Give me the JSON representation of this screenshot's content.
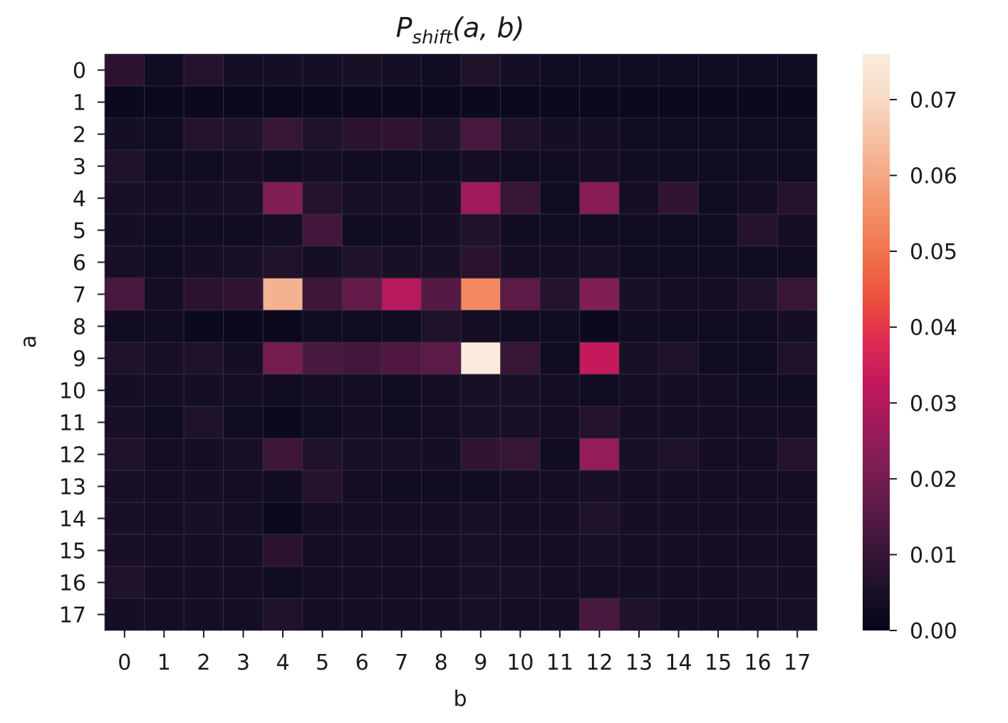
{
  "chart_data": {
    "type": "heatmap",
    "title": "P",
    "title_subscript": "shift",
    "title_args": "(a, b)",
    "xlabel": "b",
    "ylabel": "a",
    "x_categories": [
      "0",
      "1",
      "2",
      "3",
      "4",
      "5",
      "6",
      "7",
      "8",
      "9",
      "10",
      "11",
      "12",
      "13",
      "14",
      "15",
      "16",
      "17"
    ],
    "y_categories": [
      "0",
      "1",
      "2",
      "3",
      "4",
      "5",
      "6",
      "7",
      "8",
      "9",
      "10",
      "11",
      "12",
      "13",
      "14",
      "15",
      "16",
      "17"
    ],
    "values": [
      [
        0.008,
        0.003,
        0.007,
        0.004,
        0.004,
        0.004,
        0.005,
        0.004,
        0.003,
        0.006,
        0.004,
        0.003,
        0.003,
        0.003,
        0.003,
        0.003,
        0.003,
        0.003
      ],
      [
        0.002,
        0.002,
        0.002,
        0.002,
        0.002,
        0.002,
        0.002,
        0.002,
        0.002,
        0.002,
        0.002,
        0.002,
        0.002,
        0.002,
        0.002,
        0.002,
        0.002,
        0.002
      ],
      [
        0.004,
        0.003,
        0.007,
        0.006,
        0.01,
        0.006,
        0.008,
        0.009,
        0.006,
        0.013,
        0.006,
        0.004,
        0.004,
        0.003,
        0.003,
        0.003,
        0.003,
        0.003
      ],
      [
        0.006,
        0.003,
        0.003,
        0.004,
        0.003,
        0.004,
        0.003,
        0.003,
        0.003,
        0.004,
        0.003,
        0.003,
        0.004,
        0.003,
        0.003,
        0.003,
        0.003,
        0.003
      ],
      [
        0.005,
        0.004,
        0.004,
        0.005,
        0.022,
        0.007,
        0.005,
        0.005,
        0.004,
        0.027,
        0.01,
        0.003,
        0.023,
        0.004,
        0.009,
        0.003,
        0.004,
        0.007
      ],
      [
        0.004,
        0.003,
        0.003,
        0.003,
        0.004,
        0.012,
        0.003,
        0.003,
        0.004,
        0.006,
        0.003,
        0.003,
        0.003,
        0.003,
        0.003,
        0.003,
        0.007,
        0.004
      ],
      [
        0.005,
        0.003,
        0.004,
        0.005,
        0.006,
        0.004,
        0.006,
        0.005,
        0.005,
        0.008,
        0.004,
        0.004,
        0.005,
        0.003,
        0.003,
        0.003,
        0.003,
        0.003
      ],
      [
        0.013,
        0.004,
        0.008,
        0.009,
        0.062,
        0.011,
        0.017,
        0.031,
        0.015,
        0.054,
        0.016,
        0.007,
        0.022,
        0.005,
        0.004,
        0.004,
        0.006,
        0.01
      ],
      [
        0.003,
        0.003,
        0.002,
        0.002,
        0.002,
        0.003,
        0.003,
        0.003,
        0.006,
        0.004,
        0.003,
        0.003,
        0.002,
        0.003,
        0.003,
        0.003,
        0.003,
        0.004
      ],
      [
        0.006,
        0.005,
        0.006,
        0.004,
        0.02,
        0.013,
        0.012,
        0.014,
        0.016,
        0.076,
        0.01,
        0.003,
        0.033,
        0.005,
        0.006,
        0.003,
        0.003,
        0.006
      ],
      [
        0.004,
        0.004,
        0.004,
        0.004,
        0.003,
        0.004,
        0.004,
        0.003,
        0.004,
        0.005,
        0.005,
        0.004,
        0.003,
        0.004,
        0.004,
        0.004,
        0.003,
        0.003
      ],
      [
        0.005,
        0.003,
        0.006,
        0.003,
        0.002,
        0.003,
        0.004,
        0.003,
        0.004,
        0.005,
        0.005,
        0.004,
        0.007,
        0.004,
        0.004,
        0.004,
        0.004,
        0.004
      ],
      [
        0.006,
        0.004,
        0.004,
        0.005,
        0.011,
        0.006,
        0.005,
        0.005,
        0.004,
        0.009,
        0.01,
        0.003,
        0.025,
        0.005,
        0.006,
        0.004,
        0.004,
        0.007
      ],
      [
        0.005,
        0.004,
        0.004,
        0.004,
        0.003,
        0.007,
        0.004,
        0.003,
        0.003,
        0.003,
        0.004,
        0.004,
        0.005,
        0.004,
        0.004,
        0.004,
        0.004,
        0.004
      ],
      [
        0.005,
        0.004,
        0.005,
        0.004,
        0.002,
        0.004,
        0.004,
        0.004,
        0.004,
        0.005,
        0.004,
        0.004,
        0.006,
        0.004,
        0.004,
        0.004,
        0.004,
        0.004
      ],
      [
        0.005,
        0.004,
        0.004,
        0.004,
        0.008,
        0.004,
        0.004,
        0.004,
        0.004,
        0.005,
        0.004,
        0.004,
        0.005,
        0.004,
        0.004,
        0.004,
        0.004,
        0.004
      ],
      [
        0.006,
        0.004,
        0.004,
        0.004,
        0.003,
        0.004,
        0.004,
        0.004,
        0.004,
        0.005,
        0.005,
        0.004,
        0.004,
        0.004,
        0.004,
        0.004,
        0.005,
        0.004
      ],
      [
        0.004,
        0.004,
        0.004,
        0.004,
        0.006,
        0.004,
        0.004,
        0.004,
        0.004,
        0.005,
        0.004,
        0.004,
        0.013,
        0.006,
        0.004,
        0.004,
        0.004,
        0.005
      ]
    ],
    "vmin": 0.0,
    "vmax": 0.076,
    "colorbar_ticks": [
      0.0,
      0.01,
      0.02,
      0.03,
      0.04,
      0.05,
      0.06,
      0.07
    ],
    "colorbar_tick_labels": [
      "0.00",
      "0.01",
      "0.02",
      "0.03",
      "0.04",
      "0.05",
      "0.06",
      "0.07"
    ],
    "colormap": "rocket",
    "colormap_stops": [
      "#03051a",
      "#1c1127",
      "#3c1638",
      "#5e1a47",
      "#7f1e52",
      "#a11a5b",
      "#c2185c",
      "#de2a53",
      "#ec4c3e",
      "#f06d49",
      "#f38b63",
      "#f5a682",
      "#f6c2a6",
      "#f8dcc9",
      "#faebdd"
    ]
  }
}
